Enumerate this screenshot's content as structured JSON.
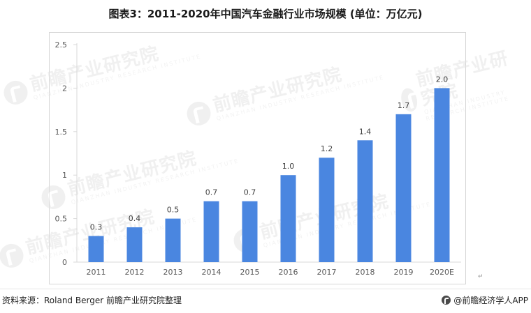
{
  "title": "图表3：2011-2020年中国汽车金融行业市场规模 (单位：万亿元)",
  "watermark": {
    "name": "前瞻产业研究院",
    "subtitle": "QIANZHAN INDUSTRY RESEARCH INSTITUTE"
  },
  "footer": {
    "source": "资料来源：Roland Berger 前瞻产业研究院整理",
    "brand": "@前瞻经济学人APP"
  },
  "colors": {
    "bar": "#4a86e0",
    "axis": "#d9d9d9",
    "tick_text": "#595959",
    "label_text": "#404040"
  },
  "chart_data": {
    "type": "bar",
    "title": "图表3：2011-2020年中国汽车金融行业市场规模 (单位：万亿元)",
    "categories": [
      "2011",
      "2012",
      "2013",
      "2014",
      "2015",
      "2016",
      "2017",
      "2018",
      "2019",
      "2020E"
    ],
    "values": [
      0.3,
      0.4,
      0.5,
      0.7,
      0.7,
      1.0,
      1.2,
      1.4,
      1.7,
      2.0
    ],
    "data_labels": [
      "0.3",
      "0.4",
      "0.5",
      "0.7",
      "0.7",
      "1.0",
      "1.2",
      "1.4",
      "1.7",
      "2.0"
    ],
    "y_ticks": [
      "0",
      "0.5",
      "1",
      "1.5",
      "2",
      "2.5"
    ],
    "ylim": [
      0,
      2.5
    ],
    "grid": false,
    "legend": "none",
    "xlabel": "",
    "ylabel": ""
  }
}
